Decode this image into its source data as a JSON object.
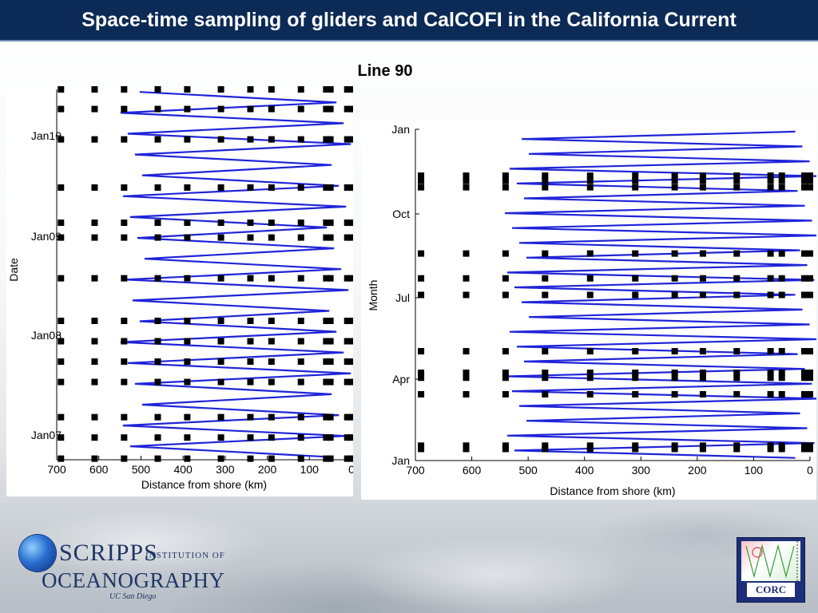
{
  "header": {
    "title": "Space-time sampling of gliders and CalCOFI in the California Current"
  },
  "subtitle": "Line 90",
  "colors": {
    "header_bg": "#0b2a55",
    "glider": "#1f24d8",
    "station": "#000000"
  },
  "logos": {
    "scripps_line1": "SCRIPPS",
    "scripps_line2": "INSTITUTION OF",
    "scripps_line3": "OCEANOGRAPHY",
    "scripps_line4": "UC San Diego",
    "corc": "CORC"
  },
  "chart_data": [
    {
      "type": "scatter",
      "xlabel": "Distance from shore (km)",
      "ylabel": "Date",
      "xlim": [
        700,
        0
      ],
      "x_ticks": [
        700,
        600,
        500,
        400,
        300,
        200,
        100,
        0
      ],
      "y_ticks": [
        "Jan07",
        "Jan08",
        "Jan09",
        "Jan10"
      ],
      "series": [
        {
          "kind": "glider_track_zigzag",
          "x_range": [
            520,
            30
          ],
          "legs": 35
        },
        {
          "kind": "calcofi_stations",
          "station_x": [
            690,
            610,
            540,
            460,
            390,
            310,
            240,
            190,
            120,
            60,
            50,
            10,
            0
          ],
          "cruise_times": [
            0.003,
            0.06,
            0.115,
            0.21,
            0.265,
            0.32,
            0.375,
            0.49,
            0.6,
            0.64,
            0.735,
            0.865,
            0.947,
            1.0
          ]
        }
      ]
    },
    {
      "type": "scatter",
      "xlabel": "Distance from shore (km)",
      "ylabel": "Month",
      "xlim": [
        700,
        0
      ],
      "x_ticks": [
        700,
        600,
        500,
        400,
        300,
        200,
        100,
        0
      ],
      "y_ticks": [
        "Jan",
        "Apr",
        "Jul",
        "Oct",
        "Jan"
      ],
      "series": [
        {
          "kind": "glider_track_zigzag",
          "x_range": [
            520,
            5
          ],
          "legs": 44
        },
        {
          "kind": "calcofi_stations",
          "station_x": [
            690,
            610,
            540,
            470,
            390,
            310,
            240,
            190,
            130,
            70,
            50,
            10,
            0
          ],
          "cruise_times": [
            0.035,
            0.045,
            0.2,
            0.25,
            0.265,
            0.33,
            0.5,
            0.55,
            0.625,
            0.825,
            0.845,
            0.86
          ]
        }
      ]
    }
  ]
}
